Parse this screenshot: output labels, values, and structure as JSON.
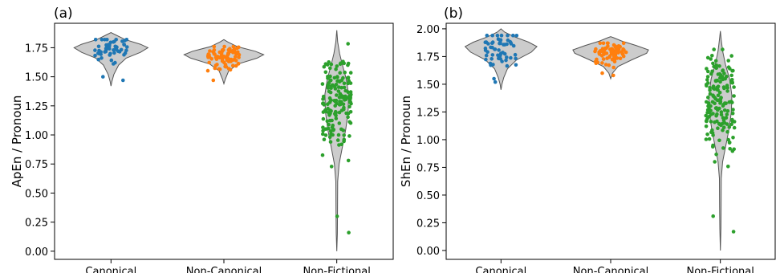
{
  "chart_data": [
    {
      "type": "violin-strip",
      "panel_label": "(a)",
      "ylabel": "ApEn / Pronoun",
      "xlabel": "",
      "categories": [
        "Canonical",
        "Non-Canonical",
        "Non-Fictional"
      ],
      "ylim": [
        -0.07,
        1.96
      ],
      "yticks": [
        0.0,
        0.25,
        0.5,
        0.75,
        1.0,
        1.25,
        1.5,
        1.75
      ],
      "ytick_labels": [
        "0.00",
        "0.25",
        "0.50",
        "0.75",
        "1.00",
        "1.25",
        "1.50",
        "1.75"
      ],
      "violin_fill": "#cccccc",
      "series": [
        {
          "category": "Canonical",
          "color": "#1f77b4",
          "n": 55,
          "min": 1.42,
          "max": 1.88,
          "center": 1.74,
          "outliers": [
            1.47,
            1.5
          ]
        },
        {
          "category": "Non-Canonical",
          "color": "#ff7f0e",
          "n": 80,
          "min": 1.44,
          "max": 1.82,
          "center": 1.68,
          "outliers": [
            1.47
          ]
        },
        {
          "category": "Non-Fictional",
          "color": "#2ca02c",
          "n": 160,
          "min": 0.0,
          "max": 1.9,
          "center": 1.3,
          "outliers": [
            0.3,
            0.16,
            0.78
          ]
        }
      ]
    },
    {
      "type": "violin-strip",
      "panel_label": "(b)",
      "ylabel": "ShEn / Pronoun",
      "xlabel": "",
      "categories": [
        "Canonical",
        "Non-Canonical",
        "Non-Fictional"
      ],
      "ylim": [
        -0.08,
        2.05
      ],
      "yticks": [
        0.0,
        0.25,
        0.5,
        0.75,
        1.0,
        1.25,
        1.5,
        1.75,
        2.0
      ],
      "ytick_labels": [
        "0.00",
        "0.25",
        "0.50",
        "0.75",
        "1.00",
        "1.25",
        "1.50",
        "1.75",
        "2.00"
      ],
      "violin_fill": "#cccccc",
      "series": [
        {
          "category": "Canonical",
          "color": "#1f77b4",
          "n": 55,
          "min": 1.45,
          "max": 2.0,
          "center": 1.83,
          "outliers": [
            1.52,
            1.55
          ]
        },
        {
          "category": "Non-Canonical",
          "color": "#ff7f0e",
          "n": 80,
          "min": 1.55,
          "max": 1.93,
          "center": 1.79,
          "outliers": [
            1.58,
            1.6
          ]
        },
        {
          "category": "Non-Fictional",
          "color": "#2ca02c",
          "n": 160,
          "min": 0.0,
          "max": 1.98,
          "center": 1.33,
          "outliers": [
            0.31,
            0.17,
            0.8
          ]
        }
      ]
    }
  ]
}
